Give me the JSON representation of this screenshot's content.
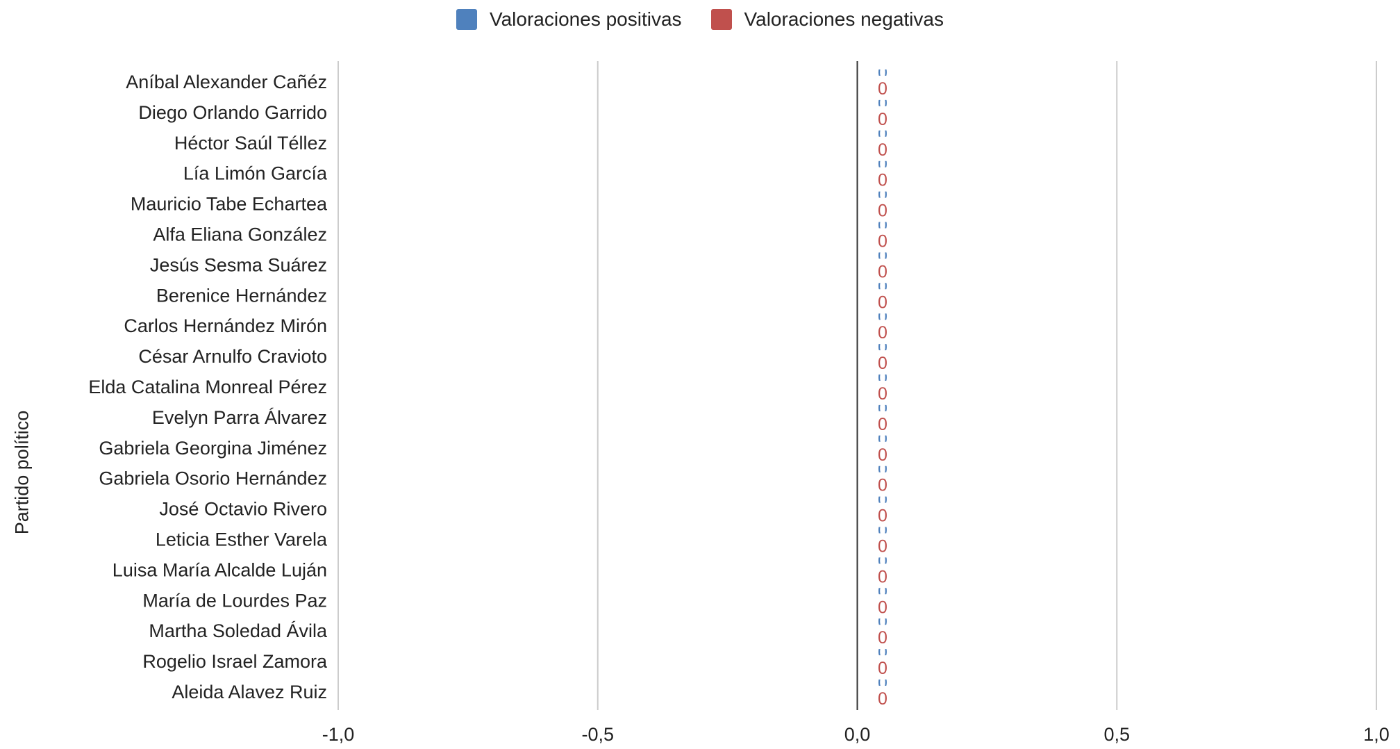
{
  "chart_data": {
    "type": "bar",
    "orientation": "horizontal",
    "ylabel": "Partido político",
    "categories": [
      "Aníbal Alexander Cañéz",
      "Diego Orlando Garrido",
      "Héctor Saúl Téllez",
      "Lía Limón García",
      "Mauricio Tabe Echartea",
      "Alfa Eliana González",
      "Jesús Sesma Suárez",
      "Berenice Hernández",
      "Carlos Hernández Mirón",
      "César Arnulfo Cravioto",
      "Elda Catalina Monreal Pérez",
      "Evelyn Parra Álvarez",
      "Gabriela Georgina Jiménez",
      "Gabriela Osorio Hernández",
      "José Octavio Rivero",
      "Leticia Esther Varela",
      "Luisa María Alcalde Luján",
      "María de Lourdes Paz",
      "Martha Soledad Ávila",
      "Rogelio Israel Zamora",
      "Aleida Alavez Ruiz"
    ],
    "series": [
      {
        "name": "Valoraciones positivas",
        "color": "#4f81bd",
        "values": [
          0,
          0,
          0,
          0,
          0,
          0,
          0,
          0,
          0,
          0,
          0,
          0,
          0,
          0,
          0,
          0,
          0,
          0,
          0,
          0,
          0
        ],
        "labels": [
          "0",
          "0",
          "0",
          "0",
          "0",
          "0",
          "0",
          "0",
          "0",
          "0",
          "0",
          "0",
          "0",
          "0",
          "0",
          "0",
          "0",
          "0",
          "0",
          "0",
          "0"
        ]
      },
      {
        "name": "Valoraciones negativas",
        "color": "#c0504d",
        "values": [
          0,
          0,
          0,
          0,
          0,
          0,
          0,
          0,
          0,
          0,
          0,
          0,
          0,
          0,
          0,
          0,
          0,
          0,
          0,
          0,
          0
        ],
        "labels": [
          "0",
          "0",
          "0",
          "0",
          "0",
          "0",
          "0",
          "0",
          "0",
          "0",
          "0",
          "0",
          "0",
          "0",
          "0",
          "0",
          "0",
          "0",
          "0",
          "0",
          "0"
        ]
      }
    ],
    "xlim": [
      -1,
      1
    ],
    "xticks": [
      -1,
      -0.5,
      0,
      0.5,
      1
    ],
    "xtick_labels": [
      "-1,0",
      "-0,5",
      "0,0",
      "0,5",
      "1,0"
    ],
    "grid": true,
    "legend_position": "top-center"
  }
}
